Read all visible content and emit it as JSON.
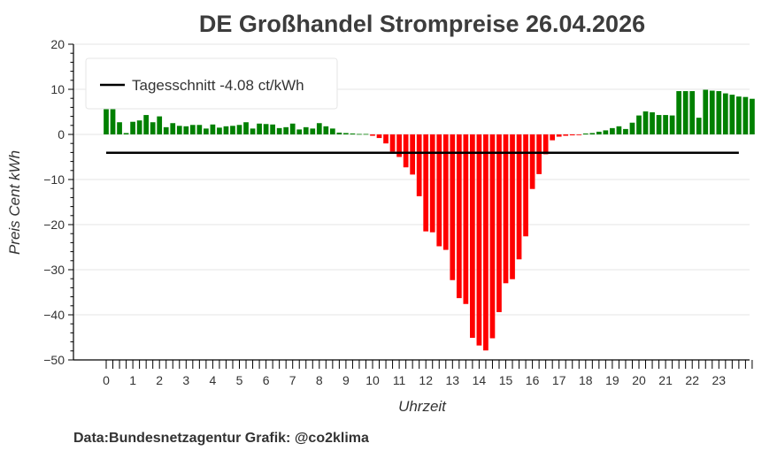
{
  "chart_data": {
    "type": "bar",
    "title": "DE Großhandel Strompreise 26.04.2026",
    "xlabel": "Uhrzeit",
    "ylabel": "Preis Cent kWh",
    "ylim": [
      -50,
      20
    ],
    "yticks": [
      20,
      10,
      0,
      -10,
      -20,
      -30,
      -40,
      -50
    ],
    "ytick_labels": [
      "20",
      "10",
      "0",
      "−10",
      "−20",
      "−30",
      "−40",
      "−50"
    ],
    "xticks": [
      0,
      1,
      2,
      3,
      4,
      5,
      6,
      7,
      8,
      9,
      10,
      11,
      12,
      13,
      14,
      15,
      16,
      17,
      18,
      19,
      20,
      21,
      22,
      23
    ],
    "xtick_labels": [
      "0",
      "1",
      "2",
      "3",
      "4",
      "5",
      "6",
      "7",
      "8",
      "9",
      "10",
      "11",
      "12",
      "13",
      "14",
      "15",
      "16",
      "17",
      "18",
      "19",
      "20",
      "21",
      "22",
      "23"
    ],
    "interval_hours": 0.25,
    "values": [
      5.6,
      5.7,
      2.7,
      0.3,
      2.8,
      3.1,
      4.3,
      2.7,
      4.0,
      1.6,
      2.5,
      1.9,
      1.8,
      2.1,
      2.1,
      1.3,
      2.2,
      1.5,
      1.8,
      1.9,
      2.1,
      2.7,
      1.3,
      2.4,
      2.3,
      2.2,
      1.4,
      1.6,
      2.4,
      1.1,
      1.6,
      1.3,
      2.5,
      1.8,
      1.3,
      0.4,
      0.3,
      0.2,
      0.1,
      0.1,
      -0.3,
      -0.8,
      -2.0,
      -3.8,
      -5.0,
      -7.3,
      -8.9,
      -13.7,
      -21.5,
      -21.7,
      -24.8,
      -25.6,
      -32.3,
      -36.3,
      -37.6,
      -45.1,
      -46.8,
      -47.9,
      -45.2,
      -39.4,
      -33.0,
      -32.1,
      -27.7,
      -22.6,
      -12.1,
      -8.8,
      -4.4,
      -1.3,
      -0.5,
      -0.3,
      -0.2,
      -0.1,
      0.2,
      0.3,
      0.6,
      0.9,
      1.4,
      1.8,
      1.2,
      2.6,
      4.2,
      5.1,
      4.9,
      4.3,
      4.3,
      4.2,
      9.6,
      9.6,
      9.6,
      3.7,
      9.9,
      9.7,
      9.6,
      9.1,
      8.8,
      8.4,
      8.3,
      7.9
    ],
    "positive_color": "#008000",
    "negative_color": "#ff0000",
    "reference_line": {
      "label": "Tagesschnitt -4.08 ct/kWh",
      "value": -4.08,
      "color": "#000000"
    },
    "legend_position": "top-left",
    "grid": true,
    "source_text": "Data:Bundesnetzagentur Grafik: @co2klima"
  }
}
